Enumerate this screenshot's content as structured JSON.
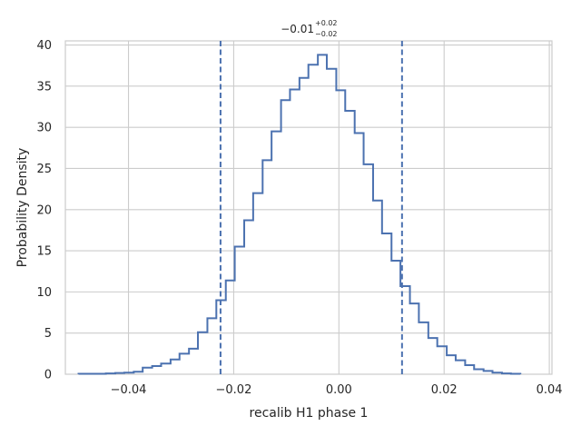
{
  "chart_data": {
    "type": "histogram",
    "title": {
      "main": "−0.01",
      "sup": "+0.02",
      "sub": "−0.02"
    },
    "xlabel": "recalib H1 phase 1",
    "ylabel": "Probability Density",
    "xlim": [
      -0.052,
      0.0405
    ],
    "ylim": [
      0,
      40.5
    ],
    "xticks": [
      -0.04,
      -0.02,
      0.0,
      0.02,
      0.04
    ],
    "xtick_labels": [
      "−0.04",
      "−0.02",
      "0.00",
      "0.02",
      "0.04"
    ],
    "yticks": [
      0,
      5,
      10,
      15,
      20,
      25,
      30,
      35,
      40
    ],
    "ytick_labels": [
      "0",
      "5",
      "10",
      "15",
      "20",
      "25",
      "30",
      "35",
      "40"
    ],
    "grid": true,
    "bin_edges": [
      -0.0495,
      -0.0478,
      -0.046,
      -0.0443,
      -0.0425,
      -0.0408,
      -0.039,
      -0.0373,
      -0.0355,
      -0.0338,
      -0.032,
      -0.0303,
      -0.0285,
      -0.0268,
      -0.025,
      -0.0233,
      -0.0215,
      -0.0198,
      -0.018,
      -0.0163,
      -0.0145,
      -0.0128,
      -0.011,
      -0.0093,
      -0.0075,
      -0.0058,
      -0.004,
      -0.0023,
      -0.0005,
      0.0012,
      0.003,
      0.0047,
      0.0065,
      0.0082,
      0.01,
      0.0117,
      0.0135,
      0.0152,
      0.017,
      0.0187,
      0.0205,
      0.0222,
      0.024,
      0.0257,
      0.0275,
      0.0292,
      0.031,
      0.0327,
      0.0345
    ],
    "densities": [
      0.05,
      0.05,
      0.05,
      0.1,
      0.15,
      0.2,
      0.3,
      0.8,
      1.0,
      1.3,
      1.8,
      2.5,
      3.1,
      5.1,
      6.8,
      9.0,
      11.4,
      15.5,
      18.7,
      22.0,
      26.0,
      29.5,
      33.3,
      34.6,
      36.0,
      37.6,
      38.8,
      37.1,
      34.5,
      32.0,
      29.3,
      25.5,
      21.1,
      17.1,
      13.8,
      10.7,
      8.6,
      6.3,
      4.4,
      3.4,
      2.3,
      1.7,
      1.1,
      0.6,
      0.4,
      0.2,
      0.1,
      0.05
    ],
    "quantile_lines": [
      -0.0225,
      0.012
    ],
    "colors": {
      "histogram": "#4c72b0",
      "quantile_lines": "#4c72b0",
      "grid": "#cccccc",
      "background": "#ffffff"
    }
  }
}
